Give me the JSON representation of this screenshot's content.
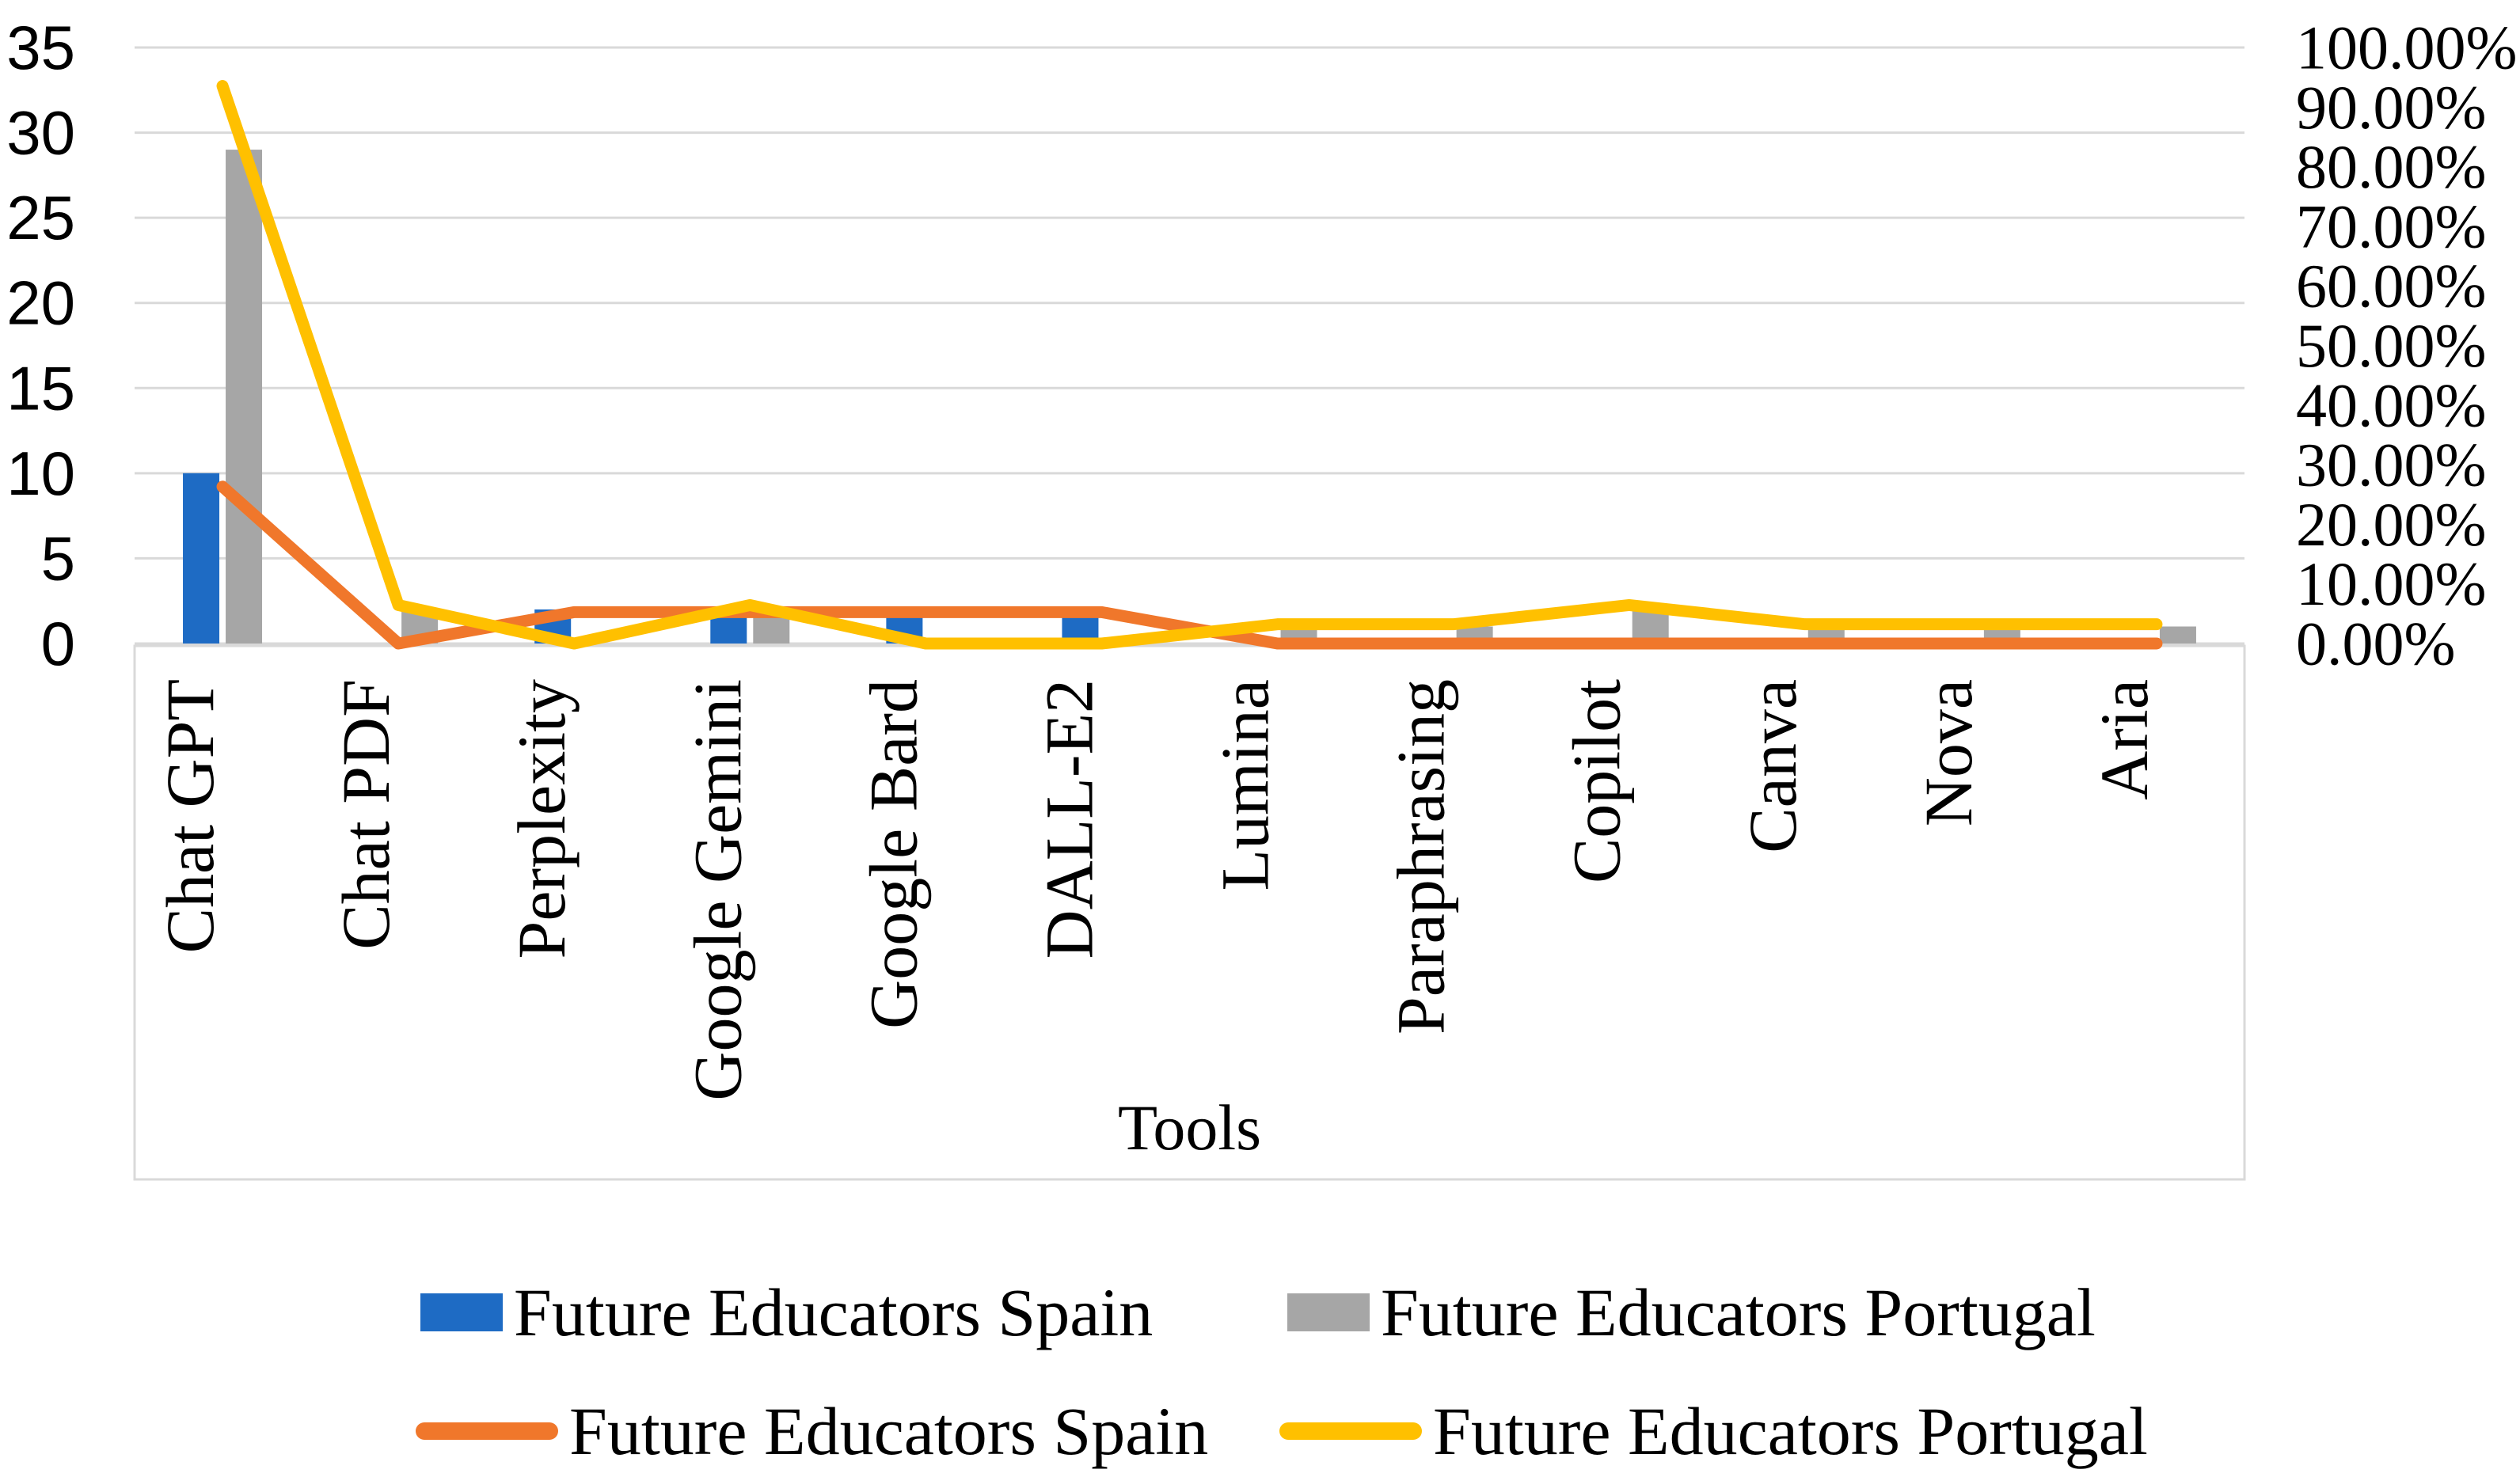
{
  "chart_data": {
    "type": "combo-bar-line",
    "title": "",
    "xlabel": "Tools",
    "categories": [
      "Chat GPT",
      "Chat PDF",
      "Perplexity",
      "Google Gemini",
      "Google Bard",
      "DALL-E2",
      "Lumina",
      "Paraphrasing",
      "Copilot",
      "Canva",
      "Nova",
      "Aria"
    ],
    "left_axis": {
      "min": 0,
      "max": 35,
      "step": 5,
      "tick_labels": [
        "0",
        "5",
        "10",
        "15",
        "20",
        "25",
        "30",
        "35"
      ]
    },
    "right_axis": {
      "min": 0,
      "max": 100,
      "step": 10,
      "tick_labels": [
        "0.00%",
        "10.00%",
        "20.00%",
        "30.00%",
        "40.00%",
        "50.00%",
        "60.00%",
        "70.00%",
        "80.00%",
        "90.00%",
        "100.00%"
      ]
    },
    "grid": true,
    "grid_color": "#D9D9D9",
    "legend_position": "bottom",
    "series": [
      {
        "name": "Future Educators Spain",
        "kind": "bar",
        "axis": "left",
        "color": "#1E6BC4",
        "values": [
          10,
          0,
          2,
          2,
          2,
          2,
          0,
          0,
          0,
          0,
          0,
          0
        ]
      },
      {
        "name": "Future Educators Portugal",
        "kind": "bar",
        "axis": "left",
        "color": "#A6A6A6",
        "values": [
          29,
          2,
          0,
          2,
          0,
          0,
          1,
          1,
          2,
          1,
          1,
          1
        ]
      },
      {
        "name": "Future Educators Spain",
        "kind": "line",
        "axis": "right",
        "color": "#F0772B",
        "values": [
          26.32,
          0,
          5.26,
          5.26,
          5.26,
          5.26,
          0,
          0,
          0,
          0,
          0,
          0
        ]
      },
      {
        "name": "Future Educators Portugal",
        "kind": "line",
        "axis": "right",
        "color": "#FFC000",
        "values": [
          93.55,
          6.45,
          0,
          6.45,
          0,
          0,
          3.23,
          3.23,
          6.45,
          3.23,
          3.23,
          3.23
        ]
      }
    ]
  }
}
